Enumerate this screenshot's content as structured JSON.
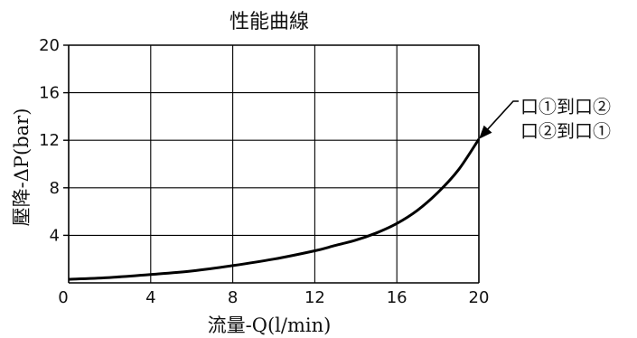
{
  "chart_data": {
    "type": "line",
    "title": "性能曲線",
    "xlabel": "流量-Q(l/min)",
    "ylabel": "壓降-ΔP(bar)",
    "xlim": [
      0,
      20
    ],
    "ylim": [
      0,
      20
    ],
    "x_ticks": [
      "0",
      "4",
      "8",
      "12",
      "16",
      "20"
    ],
    "y_ticks": [
      "4",
      "8",
      "12",
      "16",
      "20"
    ],
    "grid": true,
    "series": [
      {
        "x": [
          0,
          2,
          4,
          6,
          8,
          10,
          12,
          13,
          14,
          15,
          16,
          17,
          18,
          19,
          20
        ],
        "values": [
          0.3,
          0.45,
          0.7,
          1.0,
          1.45,
          2.0,
          2.7,
          3.15,
          3.6,
          4.2,
          5.0,
          6.1,
          7.6,
          9.5,
          12.1
        ]
      }
    ],
    "annotations": [
      {
        "line1": "口①到口②",
        "line2": "口②到口①",
        "x": 20,
        "y": 12.1
      }
    ],
    "colors": {
      "line": "#000000",
      "grid": "#000000",
      "text": "#111111"
    }
  }
}
